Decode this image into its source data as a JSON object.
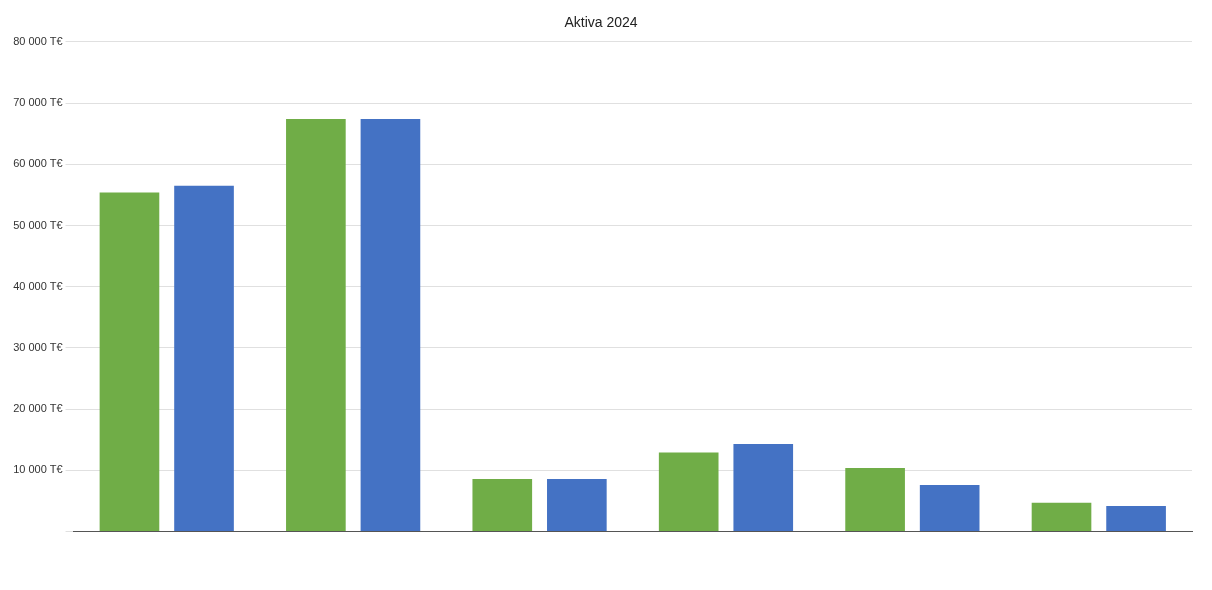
{
  "chart_data": {
    "type": "bar",
    "title": "Aktiva 2024",
    "categories": [
      null,
      null,
      null,
      null,
      null,
      null
    ],
    "series": [
      {
        "color": "#70ad47",
        "values": [
          55400,
          67400,
          8600,
          12900,
          10400,
          4700
        ]
      },
      {
        "color": "#4472c4",
        "values": [
          56500,
          67400,
          8600,
          14300,
          7600,
          4200
        ]
      }
    ],
    "ylim": [
      0,
      80000
    ],
    "yticks": [
      {
        "value": 0,
        "label": null
      },
      {
        "value": 10000,
        "label": "10 000 T€"
      },
      {
        "value": 20000,
        "label": "20 000 T€"
      },
      {
        "value": 30000,
        "label": "30 000 T€"
      },
      {
        "value": 40000,
        "label": "40 000 T€"
      },
      {
        "value": 50000,
        "label": "50 000 T€"
      },
      {
        "value": 60000,
        "label": "60 000 T€"
      },
      {
        "value": 70000,
        "label": "70 000 T€"
      },
      {
        "value": 80000,
        "label": "80 000 T€"
      }
    ],
    "grid": "y",
    "legend": false
  }
}
